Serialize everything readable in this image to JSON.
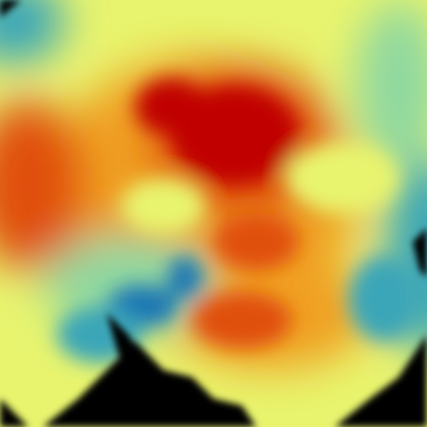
{
  "image": {
    "kind": "weather radar reflectivity sweep",
    "palette": {
      "no_data": "#000000",
      "low_teal": "#3aa6b8",
      "low_blue": "#1f78b4",
      "mid_green": "#8fd8a0",
      "mid_yellow": "#e8f46e",
      "high_orange": "#f0a020",
      "higher_red": "#e05010",
      "max_darkred": "#c00000"
    }
  }
}
